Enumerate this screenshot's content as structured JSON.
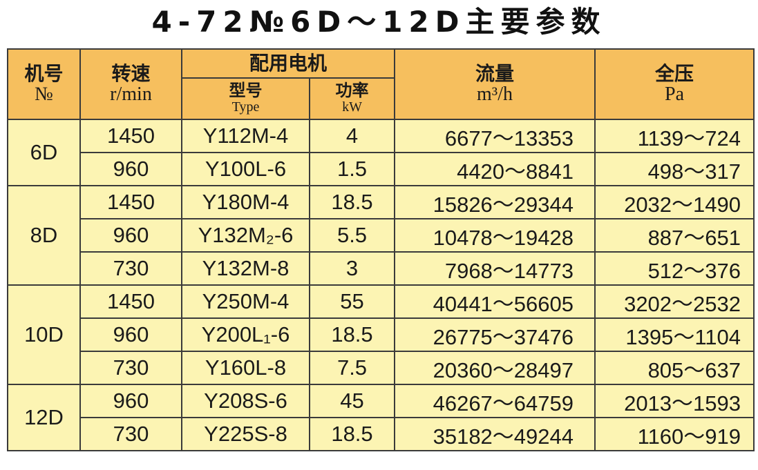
{
  "title": "4-72№6D～12D主要参数",
  "table": {
    "headers": {
      "no": [
        "机号",
        "№"
      ],
      "speed": [
        "转速",
        "r/min"
      ],
      "motor": "配用电机",
      "model": [
        "型号",
        "Type"
      ],
      "power": [
        "功率",
        "kW"
      ],
      "flow": [
        "流量",
        "m³/h"
      ],
      "pressure": [
        "全压",
        "Pa"
      ]
    },
    "groups": [
      {
        "no": "6D",
        "rows": [
          [
            "1450",
            "Y112M-4",
            "4",
            "6677～13353",
            "1139～724"
          ],
          [
            "960",
            "Y100L-6",
            "1.5",
            "4420～8841",
            "498～317"
          ]
        ]
      },
      {
        "no": "8D",
        "rows": [
          [
            "1450",
            "Y180M-4",
            "18.5",
            "15826～29344",
            "2032～1490"
          ],
          [
            "960",
            "Y132M₂-6",
            "5.5",
            "10478～19428",
            "887～651"
          ],
          [
            "730",
            "Y132M-8",
            "3",
            "7968～14773",
            "512～376"
          ]
        ]
      },
      {
        "no": "10D",
        "rows": [
          [
            "1450",
            "Y250M-4",
            "55",
            "40441～56605",
            "3202～2532"
          ],
          [
            "960",
            "Y200L₁-6",
            "18.5",
            "26775～37476",
            "1395～1104"
          ],
          [
            "730",
            "Y160L-8",
            "7.5",
            "20360～28497",
            "805～637"
          ]
        ]
      },
      {
        "no": "12D",
        "rows": [
          [
            "960",
            "Y208S-6",
            "45",
            "46267～64759",
            "2013～1593"
          ],
          [
            "730",
            "Y225S-8",
            "18.5",
            "35182～49244",
            "1160～919"
          ]
        ]
      }
    ]
  }
}
